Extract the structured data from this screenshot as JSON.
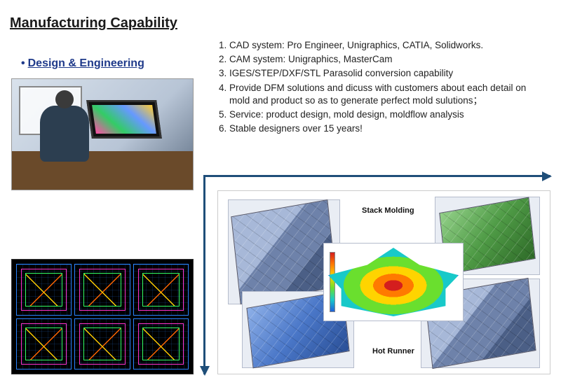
{
  "title": "Manufacturing Capability",
  "subtitle": "Design & Engineering",
  "capability_list": [
    "CAD system: Pro Engineer, Unigraphics, CATIA, Solidworks.",
    "CAM system: Unigraphics, MasterCam",
    "IGES/STEP/DXF/STL Parasolid conversion capability",
    "Provide DFM solutions and dicuss with customers about each detail on mold and product so as to generate perfect mold sulutions；",
    "Service: product design, mold design, moldflow analysis",
    "Stable designers over 15 years!"
  ],
  "mold_labels": {
    "stack": "Stack Molding",
    "hot_runner": "Hot Runner"
  },
  "colors": {
    "accent": "#1f4e79",
    "link": "#1f3a8a",
    "text": "#1a1a1a",
    "cad_bg": "#000000"
  }
}
